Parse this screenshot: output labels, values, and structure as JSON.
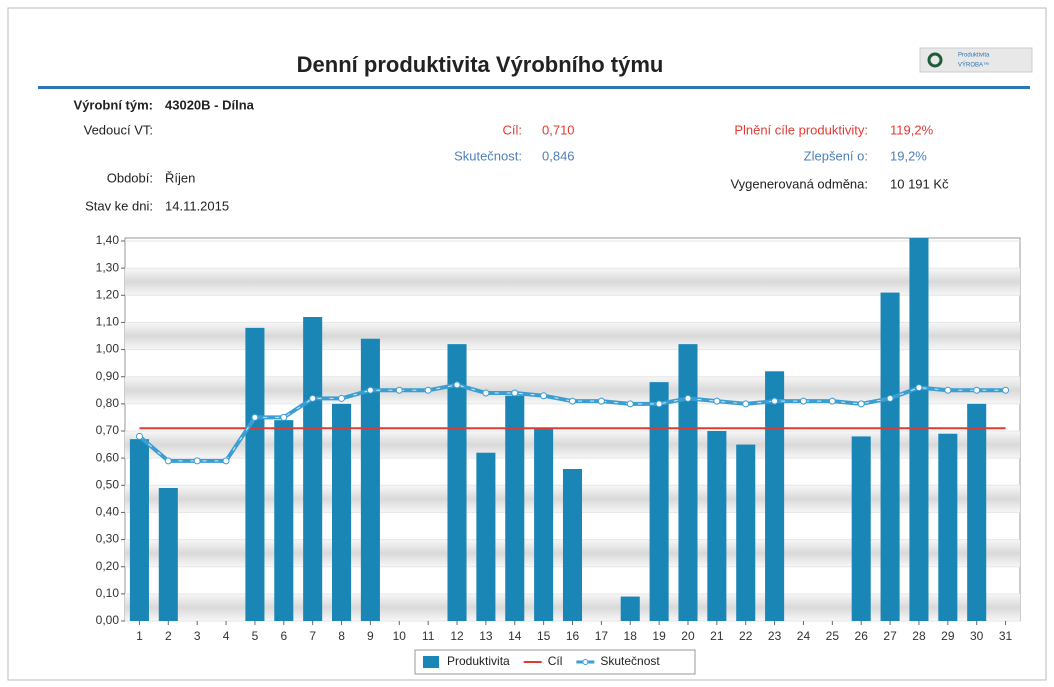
{
  "chart_data": {
    "type": "bar",
    "title": "Denní produktivita Výrobního týmu",
    "categories": [
      "1",
      "2",
      "3",
      "4",
      "5",
      "6",
      "7",
      "8",
      "9",
      "10",
      "11",
      "12",
      "13",
      "14",
      "15",
      "16",
      "17",
      "18",
      "19",
      "20",
      "21",
      "22",
      "23",
      "24",
      "25",
      "26",
      "27",
      "28",
      "29",
      "30",
      "31"
    ],
    "series": [
      {
        "name": "Produktivita",
        "type": "bar",
        "color": "#1a86b6",
        "values": [
          0.67,
          0.49,
          null,
          null,
          1.08,
          0.74,
          1.12,
          0.8,
          1.04,
          null,
          null,
          1.02,
          0.62,
          0.83,
          0.71,
          0.56,
          null,
          0.09,
          0.88,
          1.02,
          0.7,
          0.65,
          0.92,
          null,
          null,
          0.68,
          1.21,
          1.42,
          0.69,
          0.8,
          null
        ]
      },
      {
        "name": "Cíl",
        "type": "line",
        "color": "#e03b32",
        "values": [
          0.71,
          0.71,
          0.71,
          0.71,
          0.71,
          0.71,
          0.71,
          0.71,
          0.71,
          0.71,
          0.71,
          0.71,
          0.71,
          0.71,
          0.71,
          0.71,
          0.71,
          0.71,
          0.71,
          0.71,
          0.71,
          0.71,
          0.71,
          0.71,
          0.71,
          0.71,
          0.71,
          0.71,
          0.71,
          0.71,
          0.71
        ]
      },
      {
        "name": "Skutečnost",
        "type": "marked-line",
        "color": "#3a9ed2",
        "values": [
          0.68,
          0.59,
          0.59,
          0.59,
          0.75,
          0.75,
          0.82,
          0.82,
          0.85,
          0.85,
          0.85,
          0.87,
          0.84,
          0.84,
          0.83,
          0.81,
          0.81,
          0.8,
          0.8,
          0.82,
          0.81,
          0.8,
          0.81,
          0.81,
          0.81,
          0.8,
          0.82,
          0.86,
          0.85,
          0.85,
          0.85
        ]
      }
    ],
    "ylim": [
      0,
      1.4
    ],
    "yticks": [
      {
        "value": 0,
        "label": "0,00"
      },
      {
        "value": 0.1,
        "label": "0,10"
      },
      {
        "value": 0.2,
        "label": "0,20"
      },
      {
        "value": 0.3,
        "label": "0,30"
      },
      {
        "value": 0.4,
        "label": "0,40"
      },
      {
        "value": 0.5,
        "label": "0,50"
      },
      {
        "value": 0.6,
        "label": "0,60"
      },
      {
        "value": 0.7,
        "label": "0,70"
      },
      {
        "value": 0.8,
        "label": "0,80"
      },
      {
        "value": 0.9,
        "label": "0,90"
      },
      {
        "value": 1.0,
        "label": "1,00"
      },
      {
        "value": 1.1,
        "label": "1,10"
      },
      {
        "value": 1.2,
        "label": "1,20"
      },
      {
        "value": 1.3,
        "label": "1,30"
      },
      {
        "value": 1.4,
        "label": "1,40"
      }
    ],
    "grid": true,
    "legend": "bottom"
  },
  "logo": {
    "line1": "Produktivita",
    "line2": "VÝROBA™"
  },
  "report": {
    "team_label": "Výrobní tým:",
    "team": "43020B - Dílna",
    "leader_label": "Vedoucí VT:",
    "period_label": "Období:",
    "period": "Říjen",
    "date_label": "Stav ke dni:",
    "date": "14.11.2015",
    "goal_label": "Cíl:",
    "goal": "0,710",
    "actual_label": "Skutečnost:",
    "actual": "0,846",
    "fulfil_label": "Plnění cíle produktivity:",
    "fulfil": "119,2%",
    "improve_label": "Zlepšení o:",
    "improve": "19,2%",
    "reward_label": "Vygenerovaná odměna:",
    "reward": "10 191 Kč"
  }
}
